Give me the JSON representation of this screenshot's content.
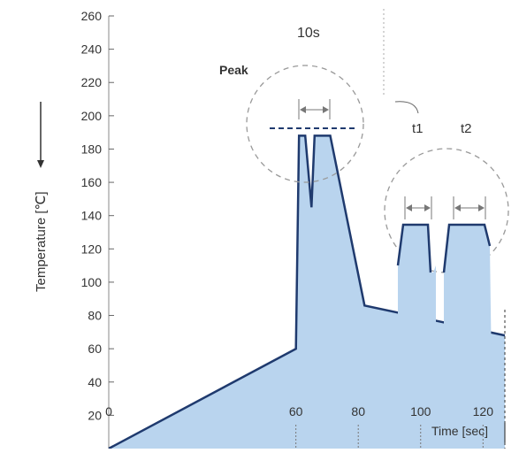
{
  "chart_data": {
    "type": "area",
    "title": "",
    "xlabel": "Time  [sec]",
    "ylabel": "Temperature [℃]",
    "x_ticks": [
      "0",
      "60",
      "80",
      "100",
      "120"
    ],
    "y_ticks": [
      "20",
      "40",
      "60",
      "80",
      "100",
      "120",
      "140",
      "160",
      "180",
      "200",
      "220",
      "240",
      "260"
    ],
    "xlim": [
      0,
      127
    ],
    "ylim": [
      0,
      260
    ],
    "grid": false,
    "colors": {
      "fill": "#b9d4ee",
      "line": "#1f3a6e",
      "dash": "#999999"
    },
    "profile": {
      "x": [
        0,
        60,
        61,
        63,
        65,
        66,
        68,
        71,
        82,
        127
      ],
      "y": [
        0,
        60,
        188,
        188,
        145,
        188,
        188,
        188,
        86,
        68
      ]
    },
    "annotations": {
      "peak_label": "Peak",
      "dwell_label": "10s",
      "t1_label": "t1",
      "t2_label": "t2"
    }
  }
}
